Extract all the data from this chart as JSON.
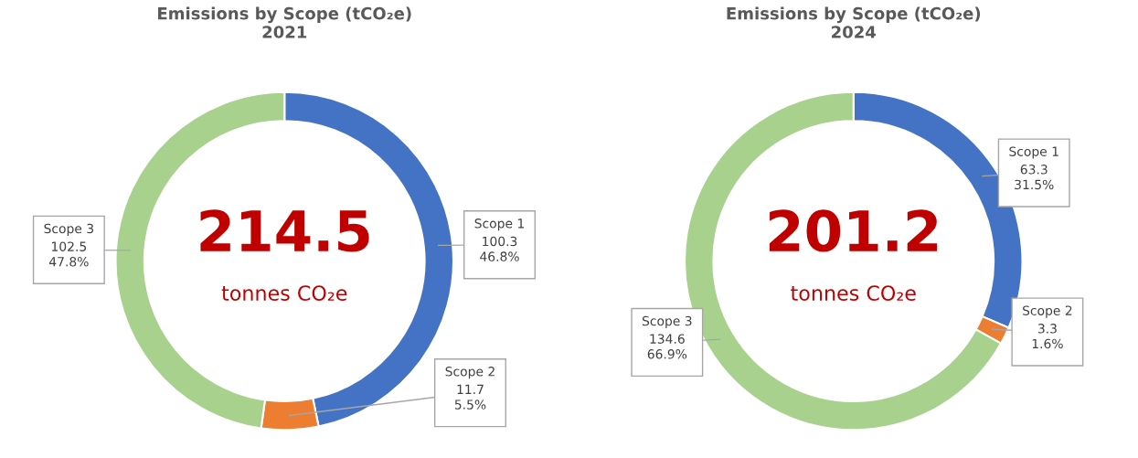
{
  "chart_data": [
    {
      "type": "donut",
      "title": "Emissions by Scope (tCO₂e)",
      "subtitle": "2021",
      "categories": [
        "Scope 1",
        "Scope 2",
        "Scope 3"
      ],
      "values": [
        100.3,
        11.7,
        102.5
      ],
      "colors": [
        "#4472c4",
        "#ed7d31",
        "#a9d18e"
      ],
      "value_labels": [
        "100.3\n46.8%",
        "11.7\n5.5%",
        "102.5\n47.8%"
      ],
      "annotations": [
        "214.5",
        "tonnes CO₂e"
      ]
    },
    {
      "type": "donut",
      "title": "Emissions by Scope (tCO₂e)",
      "subtitle": "2024",
      "categories": [
        "Scope 1",
        "Scope 2",
        "Scope 3"
      ],
      "values": [
        63.3,
        3.3,
        134.6
      ],
      "colors": [
        "#4472c4",
        "#ed7d31",
        "#a9d18e"
      ],
      "value_labels": [
        "63.3\n31.5%",
        "3.3\n1.6%",
        "134.6\n66.9%"
      ],
      "annotations": [
        "201.2",
        "tonnes CO₂e"
      ]
    }
  ]
}
